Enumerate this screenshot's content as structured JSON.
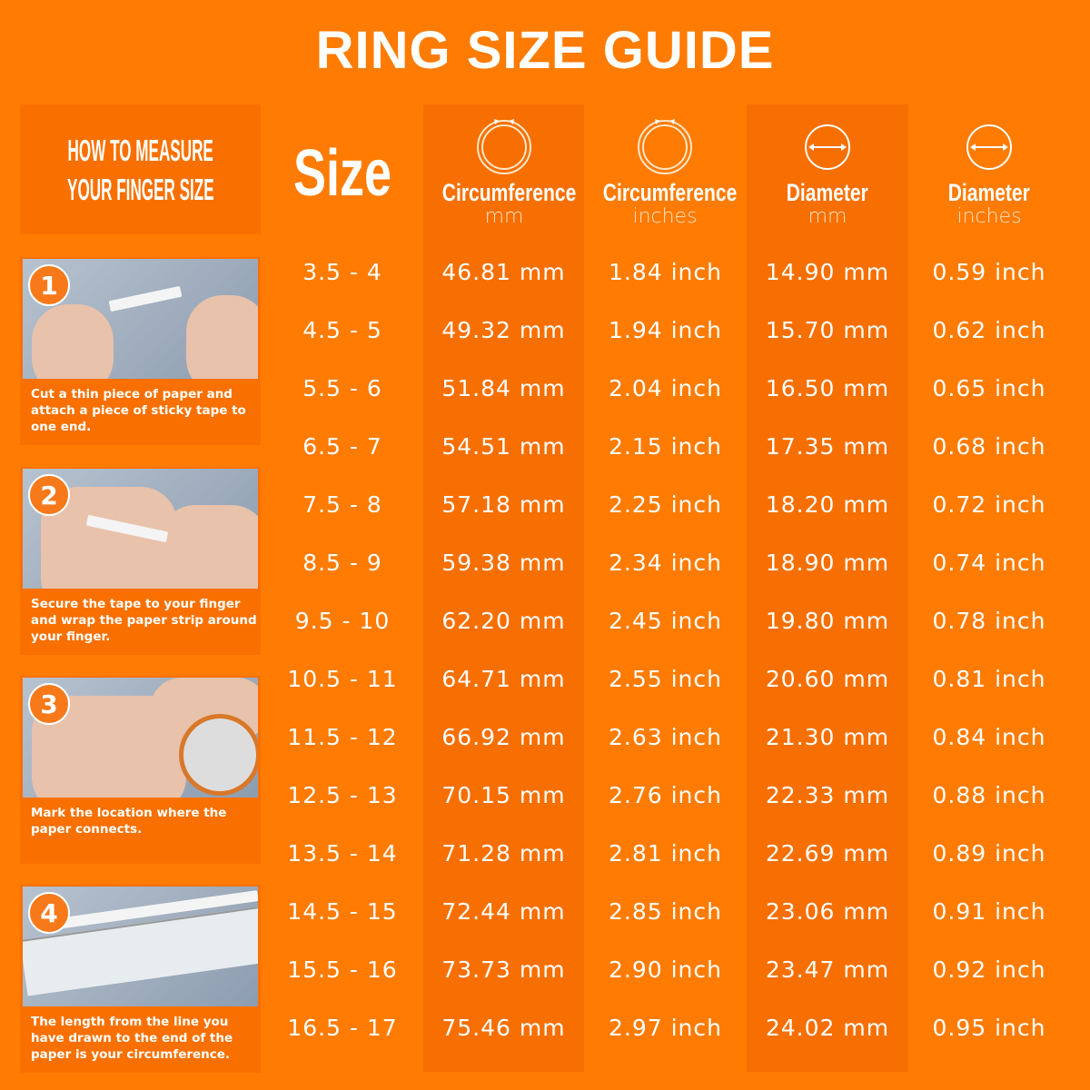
{
  "title": "RING SIZE GUIDE",
  "how_to": {
    "line1": "HOW TO MEASURE",
    "line2": "YOUR FINGER SIZE"
  },
  "steps": [
    {
      "number": "1",
      "text": "Cut a thin piece of paper and attach a piece of sticky tape to one end."
    },
    {
      "number": "2",
      "text": "Secure the tape to your finger and wrap the paper strip around your finger."
    },
    {
      "number": "3",
      "text": "Mark the location where the paper connects."
    },
    {
      "number": "4",
      "text": "The length from the line you have drawn to the end of the paper is your circumference."
    }
  ],
  "table": {
    "size_header": "Size",
    "columns": [
      {
        "label": "Circumference",
        "unit": "mm",
        "icon": "ring-circumference-icon"
      },
      {
        "label": "Circumference",
        "unit": "inches",
        "icon": "ring-circumference-icon"
      },
      {
        "label": "Diameter",
        "unit": "mm",
        "icon": "diameter-icon"
      },
      {
        "label": "Diameter",
        "unit": "inches",
        "icon": "diameter-icon"
      }
    ],
    "rows": [
      [
        "3.5 - 4",
        "46.81 mm",
        "1.84 inch",
        "14.90 mm",
        "0.59 inch"
      ],
      [
        "4.5 - 5",
        "49.32 mm",
        "1.94 inch",
        "15.70 mm",
        "0.62 inch"
      ],
      [
        "5.5 - 6",
        "51.84 mm",
        "2.04 inch",
        "16.50 mm",
        "0.65 inch"
      ],
      [
        "6.5 - 7",
        "54.51 mm",
        "2.15 inch",
        "17.35 mm",
        "0.68 inch"
      ],
      [
        "7.5 - 8",
        "57.18 mm",
        "2.25 inch",
        "18.20 mm",
        "0.72 inch"
      ],
      [
        "8.5 - 9",
        "59.38 mm",
        "2.34 inch",
        "18.90 mm",
        "0.74 inch"
      ],
      [
        "9.5 - 10",
        "62.20 mm",
        "2.45 inch",
        "19.80 mm",
        "0.78 inch"
      ],
      [
        "10.5 - 11",
        "64.71 mm",
        "2.55 inch",
        "20.60 mm",
        "0.81 inch"
      ],
      [
        "11.5 - 12",
        "66.92 mm",
        "2.63 inch",
        "21.30 mm",
        "0.84 inch"
      ],
      [
        "12.5 - 13",
        "70.15 mm",
        "2.76 inch",
        "22.33 mm",
        "0.88 inch"
      ],
      [
        "13.5 - 14",
        "71.28 mm",
        "2.81 inch",
        "22.69 mm",
        "0.89 inch"
      ],
      [
        "14.5 - 15",
        "72.44 mm",
        "2.85 inch",
        "23.06 mm",
        "0.91 inch"
      ],
      [
        "15.5 - 16",
        "73.73 mm",
        "2.90 inch",
        "23.47 mm",
        "0.92 inch"
      ],
      [
        "16.5 - 17",
        "75.46 mm",
        "2.97 inch",
        "24.02 mm",
        "0.95 inch"
      ]
    ]
  },
  "colors": {
    "background": "#ff7b02",
    "panel": "#f97000",
    "text": "#ffffff"
  }
}
